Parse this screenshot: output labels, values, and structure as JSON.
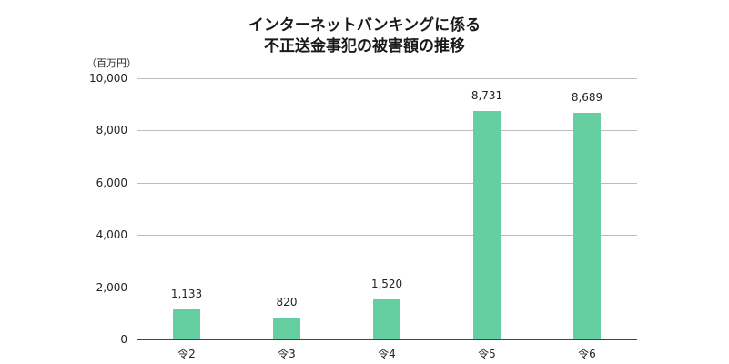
{
  "chart_data": {
    "type": "bar",
    "title": "インターネットバンキングに係る\n不正送金事犯の被害額の推移",
    "title_lines": [
      "インターネットバンキングに係る",
      "不正送金事犯の被害額の推移"
    ],
    "unit_label": "（百万円）",
    "xlabel": "",
    "ylabel": "（百万円）",
    "categories": [
      "令2",
      "令3",
      "令4",
      "令5",
      "令6"
    ],
    "values": [
      1133,
      820,
      1520,
      8731,
      8689
    ],
    "value_labels": [
      "1,133",
      "820",
      "1,520",
      "8,731",
      "8,689"
    ],
    "ylim": [
      0,
      10000
    ],
    "yticks": [
      0,
      2000,
      4000,
      6000,
      8000,
      10000
    ],
    "ytick_labels": [
      "0",
      "2,000",
      "4,000",
      "6,000",
      "8,000",
      "10,000"
    ],
    "grid": true,
    "legend": null,
    "bar_color": "#66cfa1"
  }
}
